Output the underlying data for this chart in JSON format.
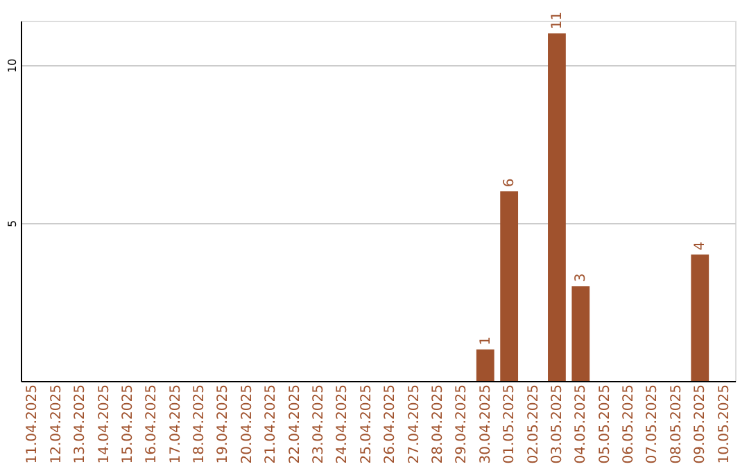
{
  "chart_data": {
    "type": "bar",
    "categories": [
      "11.04.2025",
      "12.04.2025",
      "13.04.2025",
      "14.04.2025",
      "15.04.2025",
      "16.04.2025",
      "17.04.2025",
      "18.04.2025",
      "19.04.2025",
      "20.04.2025",
      "21.04.2025",
      "22.04.2025",
      "23.04.2025",
      "24.04.2025",
      "25.04.2025",
      "26.04.2025",
      "27.04.2025",
      "28.04.2025",
      "29.04.2025",
      "30.04.2025",
      "01.05.2025",
      "02.05.2025",
      "03.05.2025",
      "04.05.2025",
      "05.05.2025",
      "06.05.2025",
      "07.05.2025",
      "08.05.2025",
      "09.05.2025",
      "10.05.2025"
    ],
    "values": [
      0,
      0,
      0,
      0,
      0,
      0,
      0,
      0,
      0,
      0,
      0,
      0,
      0,
      0,
      0,
      0,
      0,
      0,
      0,
      1,
      6,
      0,
      11,
      3,
      0,
      0,
      0,
      0,
      4,
      0
    ],
    "value_labels": [
      null,
      null,
      null,
      null,
      null,
      null,
      null,
      null,
      null,
      null,
      null,
      null,
      null,
      null,
      null,
      null,
      null,
      null,
      null,
      "1",
      "6",
      null,
      "11",
      "3",
      null,
      null,
      null,
      null,
      "4",
      null
    ],
    "color": "#a0522d",
    "ylim": [
      0,
      11.4
    ],
    "yticks": [
      5,
      10
    ],
    "grid": "y"
  }
}
